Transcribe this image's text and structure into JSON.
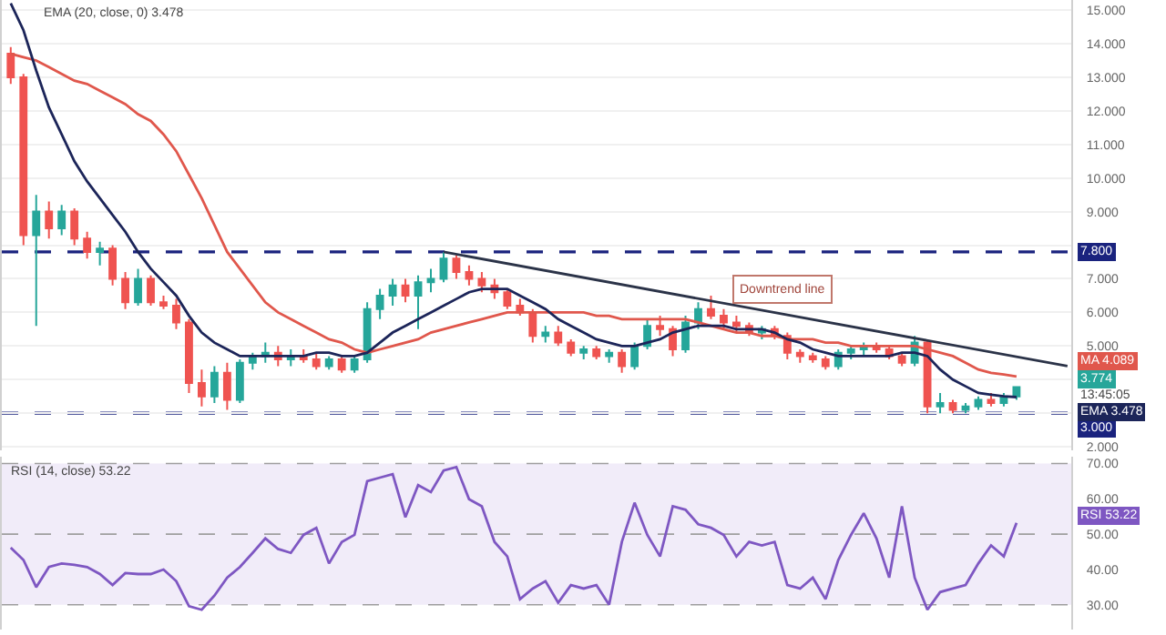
{
  "chart_data": [
    {
      "type": "candlestick",
      "categories": [
        null,
        null,
        null,
        null,
        null,
        null,
        null,
        null,
        null,
        null,
        null,
        null,
        null,
        null,
        null,
        null,
        null,
        null,
        null,
        null,
        null,
        null,
        null,
        null,
        null,
        null,
        null,
        null,
        null,
        null,
        null,
        null,
        null,
        null,
        null,
        null,
        null,
        null,
        null,
        null,
        null,
        null,
        null,
        null,
        null,
        null,
        null,
        null,
        null,
        null,
        null,
        null,
        null,
        null,
        null,
        null,
        null,
        null,
        null,
        null,
        null,
        null,
        null,
        null,
        null,
        null,
        null,
        null,
        null,
        null,
        null,
        null,
        null,
        null,
        null,
        null,
        null,
        null,
        null,
        null,
        null,
        null,
        null,
        null
      ],
      "ohlc": [
        [
          13.7,
          13.9,
          12.8,
          13.0
        ],
        [
          13.0,
          13.1,
          8.0,
          8.3
        ],
        [
          8.3,
          9.5,
          5.6,
          9.0
        ],
        [
          9.0,
          9.3,
          8.2,
          8.5
        ],
        [
          8.5,
          9.2,
          8.3,
          9.0
        ],
        [
          9.0,
          9.1,
          8.0,
          8.2
        ],
        [
          8.2,
          8.4,
          7.6,
          7.8
        ],
        [
          7.8,
          8.1,
          7.4,
          7.9
        ],
        [
          7.9,
          8.0,
          6.8,
          7.0
        ],
        [
          7.0,
          7.2,
          6.1,
          6.3
        ],
        [
          6.3,
          7.3,
          6.2,
          7.0
        ],
        [
          7.0,
          7.1,
          6.2,
          6.3
        ],
        [
          6.3,
          6.5,
          6.1,
          6.2
        ],
        [
          6.2,
          6.4,
          5.5,
          5.7
        ],
        [
          5.7,
          5.8,
          3.6,
          3.9
        ],
        [
          3.9,
          4.3,
          3.2,
          3.5
        ],
        [
          3.5,
          4.4,
          3.3,
          4.2
        ],
        [
          4.2,
          4.5,
          3.1,
          3.4
        ],
        [
          3.4,
          4.6,
          3.3,
          4.5
        ],
        [
          4.5,
          4.8,
          4.3,
          4.7
        ],
        [
          4.7,
          5.1,
          4.5,
          4.8
        ],
        [
          4.8,
          5.0,
          4.4,
          4.6
        ],
        [
          4.6,
          4.9,
          4.4,
          4.7
        ],
        [
          4.7,
          4.9,
          4.5,
          4.6
        ],
        [
          4.6,
          4.8,
          4.3,
          4.4
        ],
        [
          4.4,
          4.7,
          4.3,
          4.6
        ],
        [
          4.6,
          4.7,
          4.2,
          4.3
        ],
        [
          4.3,
          4.7,
          4.2,
          4.6
        ],
        [
          4.6,
          6.3,
          4.5,
          6.1
        ],
        [
          6.1,
          6.7,
          5.8,
          6.5
        ],
        [
          6.5,
          7.0,
          6.2,
          6.8
        ],
        [
          6.8,
          7.0,
          6.3,
          6.5
        ],
        [
          6.5,
          7.1,
          5.5,
          6.9
        ],
        [
          6.9,
          7.3,
          6.6,
          7.0
        ],
        [
          7.0,
          7.8,
          6.9,
          7.6
        ],
        [
          7.6,
          7.7,
          7.0,
          7.2
        ],
        [
          7.2,
          7.4,
          6.8,
          7.0
        ],
        [
          7.0,
          7.2,
          6.6,
          6.8
        ],
        [
          6.8,
          7.0,
          6.4,
          6.6
        ],
        [
          6.6,
          6.7,
          6.1,
          6.2
        ],
        [
          6.2,
          6.4,
          5.9,
          6.0
        ],
        [
          6.0,
          6.1,
          5.1,
          5.3
        ],
        [
          5.3,
          5.6,
          5.1,
          5.4
        ],
        [
          5.4,
          5.6,
          5.0,
          5.1
        ],
        [
          5.1,
          5.2,
          4.7,
          4.8
        ],
        [
          4.8,
          5.0,
          4.6,
          4.9
        ],
        [
          4.9,
          5.0,
          4.6,
          4.7
        ],
        [
          4.7,
          4.9,
          4.5,
          4.8
        ],
        [
          4.8,
          4.9,
          4.2,
          4.4
        ],
        [
          4.4,
          5.1,
          4.3,
          5.0
        ],
        [
          5.0,
          5.8,
          4.9,
          5.6
        ],
        [
          5.6,
          5.9,
          5.3,
          5.5
        ],
        [
          5.5,
          5.6,
          4.7,
          4.9
        ],
        [
          4.9,
          5.9,
          4.8,
          5.7
        ],
        [
          5.7,
          6.3,
          5.5,
          6.1
        ],
        [
          6.1,
          6.5,
          5.8,
          5.9
        ],
        [
          5.9,
          6.1,
          5.5,
          5.7
        ],
        [
          5.7,
          5.9,
          5.4,
          5.6
        ],
        [
          5.6,
          5.7,
          5.3,
          5.4
        ],
        [
          5.4,
          5.6,
          5.2,
          5.5
        ],
        [
          5.5,
          5.6,
          5.2,
          5.3
        ],
        [
          5.3,
          5.4,
          4.6,
          4.8
        ],
        [
          4.8,
          4.9,
          4.5,
          4.7
        ],
        [
          4.7,
          4.8,
          4.5,
          4.6
        ],
        [
          4.6,
          4.7,
          4.3,
          4.4
        ],
        [
          4.4,
          4.9,
          4.3,
          4.8
        ],
        [
          4.8,
          5.0,
          4.6,
          4.9
        ],
        [
          4.9,
          5.1,
          4.7,
          5.0
        ],
        [
          5.0,
          5.1,
          4.8,
          4.9
        ],
        [
          4.9,
          5.0,
          4.6,
          4.7
        ],
        [
          4.7,
          4.8,
          4.4,
          4.5
        ],
        [
          4.5,
          5.3,
          4.4,
          5.1
        ],
        [
          5.1,
          5.2,
          3.0,
          3.2
        ],
        [
          3.2,
          3.6,
          3.0,
          3.3
        ],
        [
          3.3,
          3.4,
          3.0,
          3.1
        ],
        [
          3.1,
          3.3,
          3.0,
          3.2
        ],
        [
          3.2,
          3.5,
          3.1,
          3.4
        ],
        [
          3.4,
          3.6,
          3.2,
          3.3
        ],
        [
          3.3,
          3.6,
          3.2,
          3.5
        ],
        [
          3.5,
          3.8,
          3.4,
          3.774
        ],
        null,
        null,
        null,
        null
      ],
      "colors": [
        "#ef5350",
        "#ef5350",
        "#26a69a",
        "#ef5350",
        "#26a69a",
        "#ef5350",
        "#ef5350",
        "#26a69a",
        "#ef5350",
        "#ef5350",
        "#26a69a",
        "#ef5350",
        "#ef5350",
        "#ef5350",
        "#ef5350",
        "#ef5350",
        "#26a69a",
        "#ef5350",
        "#26a69a",
        "#26a69a",
        "#26a69a",
        "#ef5350",
        "#26a69a",
        "#ef5350",
        "#ef5350",
        "#26a69a",
        "#ef5350",
        "#26a69a",
        "#26a69a",
        "#26a69a",
        "#26a69a",
        "#ef5350",
        "#26a69a",
        "#26a69a",
        "#26a69a",
        "#ef5350",
        "#ef5350",
        "#ef5350",
        "#ef5350",
        "#ef5350",
        "#ef5350",
        "#ef5350",
        "#26a69a",
        "#ef5350",
        "#ef5350",
        "#26a69a",
        "#ef5350",
        "#26a69a",
        "#ef5350",
        "#26a69a",
        "#26a69a",
        "#ef5350",
        "#ef5350",
        "#26a69a",
        "#26a69a",
        "#ef5350",
        "#ef5350",
        "#ef5350",
        "#ef5350",
        "#26a69a",
        "#ef5350",
        "#ef5350",
        "#ef5350",
        "#ef5350",
        "#ef5350",
        "#26a69a",
        "#26a69a",
        "#26a69a",
        "#ef5350",
        "#ef5350",
        "#ef5350",
        "#26a69a",
        "#ef5350",
        "#26a69a",
        "#ef5350",
        "#26a69a",
        "#26a69a",
        "#ef5350",
        "#26a69a",
        "#26a69a",
        null,
        null,
        null,
        null
      ],
      "series": [
        {
          "type": "line",
          "color": "#e0574c",
          "values": [
            13.7,
            13.6,
            13.5,
            13.3,
            13.1,
            12.9,
            12.8,
            12.6,
            12.4,
            12.2,
            11.9,
            11.7,
            11.3,
            10.8,
            10.1,
            9.4,
            8.6,
            7.8,
            7.3,
            6.8,
            6.3,
            6.0,
            5.8,
            5.6,
            5.4,
            5.2,
            5.1,
            4.9,
            4.8,
            4.9,
            5.0,
            5.1,
            5.2,
            5.4,
            5.5,
            5.6,
            5.7,
            5.8,
            5.9,
            6.0,
            6.0,
            6.0,
            6.0,
            6.0,
            6.0,
            6.0,
            5.9,
            5.9,
            5.8,
            5.8,
            5.8,
            5.8,
            5.8,
            5.8,
            5.7,
            5.6,
            5.5,
            5.4,
            5.4,
            5.3,
            5.3,
            5.2,
            5.2,
            5.2,
            5.1,
            5.1,
            5.0,
            5.0,
            5.0,
            5.0,
            5.0,
            5.0,
            4.9,
            4.8,
            4.7,
            4.5,
            4.3,
            4.2,
            4.15,
            4.089,
            null,
            null,
            null,
            null
          ]
        },
        {
          "type": "line",
          "color": "#1c2559",
          "values": [
            15.2,
            14.4,
            13.2,
            12.1,
            11.3,
            10.5,
            9.9,
            9.4,
            8.9,
            8.4,
            7.8,
            7.3,
            6.9,
            6.5,
            5.9,
            5.4,
            5.1,
            4.9,
            4.7,
            4.7,
            4.7,
            4.7,
            4.7,
            4.7,
            4.8,
            4.8,
            4.7,
            4.7,
            4.8,
            5.1,
            5.4,
            5.6,
            5.8,
            6.0,
            6.2,
            6.4,
            6.6,
            6.7,
            6.7,
            6.7,
            6.5,
            6.3,
            6.1,
            5.8,
            5.6,
            5.4,
            5.2,
            5.1,
            5.0,
            5.0,
            5.1,
            5.2,
            5.4,
            5.5,
            5.6,
            5.6,
            5.6,
            5.5,
            5.5,
            5.5,
            5.4,
            5.2,
            5.1,
            4.9,
            4.8,
            4.7,
            4.7,
            4.7,
            4.7,
            4.7,
            4.8,
            4.8,
            4.7,
            4.3,
            4.0,
            3.8,
            3.6,
            3.55,
            3.5,
            3.478,
            null,
            null,
            null,
            null
          ]
        },
        {
          "type": "line",
          "color": "#2b3348",
          "values": [
            null,
            null,
            null,
            null,
            null,
            null,
            null,
            null,
            null,
            null,
            null,
            null,
            null,
            null,
            null,
            null,
            null,
            null,
            null,
            null,
            null,
            null,
            null,
            null,
            null,
            null,
            null,
            null,
            null,
            null,
            null,
            null,
            null,
            null,
            7.8,
            null,
            null,
            null,
            null,
            null,
            null,
            null,
            null,
            null,
            null,
            null,
            null,
            null,
            null,
            null,
            null,
            null,
            null,
            null,
            null,
            null,
            null,
            null,
            null,
            null,
            null,
            null,
            null,
            null,
            null,
            null,
            null,
            null,
            null,
            null,
            null,
            null,
            null,
            null,
            null,
            null,
            null,
            null,
            null,
            null,
            null,
            null,
            null,
            4.4
          ]
        }
      ],
      "ylim": [
        1.9,
        15.3
      ],
      "yticks": [
        {
          "value": 2,
          "label": "2.000"
        },
        {
          "value": 3,
          "label": null
        },
        {
          "value": 4,
          "label": null
        },
        {
          "value": 5,
          "label": "5.000"
        },
        {
          "value": 6,
          "label": "6.000"
        },
        {
          "value": 7,
          "label": "7.000"
        },
        {
          "value": 8,
          "label": null
        },
        {
          "value": 9,
          "label": "9.000"
        },
        {
          "value": 10,
          "label": "10.000"
        },
        {
          "value": 11,
          "label": "11.000"
        },
        {
          "value": 12,
          "label": "12.000"
        },
        {
          "value": 13,
          "label": "13.000"
        },
        {
          "value": 14,
          "label": "14.000"
        },
        {
          "value": 15,
          "label": "15.000"
        }
      ],
      "ref_lines": [
        {
          "axis": "y",
          "value": 7.8,
          "label": "7.800",
          "color": "#1a237e",
          "line_style": "dashed"
        },
        {
          "axis": "y",
          "value": 3.0,
          "label": "3.000",
          "color": "#1a237e",
          "line_style": "dashed"
        }
      ],
      "annotations": [
        "EMA (20, close, 0) 3.478",
        "Downtrend line",
        "MA 4.089",
        "3.774",
        "13:45:05",
        "EMA 3.478"
      ],
      "grid": "y",
      "tick_labels": "y"
    },
    {
      "type": "line",
      "categories": [
        null,
        null,
        null,
        null,
        null,
        null,
        null,
        null,
        null,
        null,
        null,
        null,
        null,
        null,
        null,
        null,
        null,
        null,
        null,
        null,
        null,
        null,
        null,
        null,
        null,
        null,
        null,
        null,
        null,
        null,
        null,
        null,
        null,
        null,
        null,
        null,
        null,
        null,
        null,
        null,
        null,
        null,
        null,
        null,
        null,
        null,
        null,
        null,
        null,
        null,
        null,
        null,
        null,
        null,
        null,
        null,
        null,
        null,
        null,
        null,
        null,
        null,
        null,
        null,
        null,
        null,
        null,
        null,
        null,
        null,
        null,
        null,
        null,
        null,
        null,
        null,
        null,
        null,
        null,
        null,
        null,
        null,
        null,
        null
      ],
      "series": [
        {
          "color": "#7e57c2",
          "values": [
            46.2,
            42.7,
            35,
            40.7,
            41.7,
            41.3,
            40.7,
            38.7,
            35.6,
            39,
            38.7,
            38.7,
            40,
            36.7,
            29.6,
            28.6,
            32.6,
            37.7,
            40.7,
            44.7,
            48.8,
            45.8,
            44.7,
            49.8,
            51.8,
            41.7,
            47.8,
            49.8,
            65,
            66,
            67,
            54.8,
            63.9,
            61.9,
            68,
            69,
            59.9,
            57.9,
            47.8,
            43.7,
            31.6,
            34.6,
            36.7,
            30.6,
            35.6,
            34.6,
            35.6,
            30,
            47.8,
            58.9,
            49.8,
            43.7,
            57.9,
            56.9,
            52.8,
            51.8,
            49.8,
            43.7,
            47.8,
            46.8,
            47.8,
            35.6,
            34.6,
            37.7,
            31.6,
            42.7,
            49.8,
            55.9,
            48.8,
            37.7,
            57.9,
            37.7,
            28.6,
            33.6,
            34.6,
            35.6,
            41.7,
            46.8,
            43.7,
            53.22,
            null,
            null,
            null,
            null
          ]
        }
      ],
      "ylim": [
        23,
        72
      ],
      "yticks": [
        {
          "value": 30,
          "label": "30.00"
        },
        {
          "value": 40,
          "label": "40.00"
        },
        {
          "value": 50,
          "label": "50.00"
        },
        {
          "value": 60,
          "label": "60.00"
        },
        {
          "value": 70,
          "label": "70.00"
        }
      ],
      "ref_lines": [
        {
          "axis": "y",
          "value": 70,
          "color": "#9e9e9e",
          "line_style": "dashed"
        },
        {
          "axis": "y",
          "value": 50,
          "color": "#9e9e9e",
          "line_style": "dashed"
        },
        {
          "axis": "y",
          "value": 30,
          "color": "#9e9e9e",
          "line_style": "dashed"
        }
      ],
      "bands": [
        {
          "axis": "y",
          "from": 30,
          "to": 70,
          "color": "#f1ecf9"
        }
      ],
      "annotations": [
        "RSI (14, close) 53.22",
        "RSI 53.22"
      ],
      "tick_labels": "y"
    }
  ]
}
